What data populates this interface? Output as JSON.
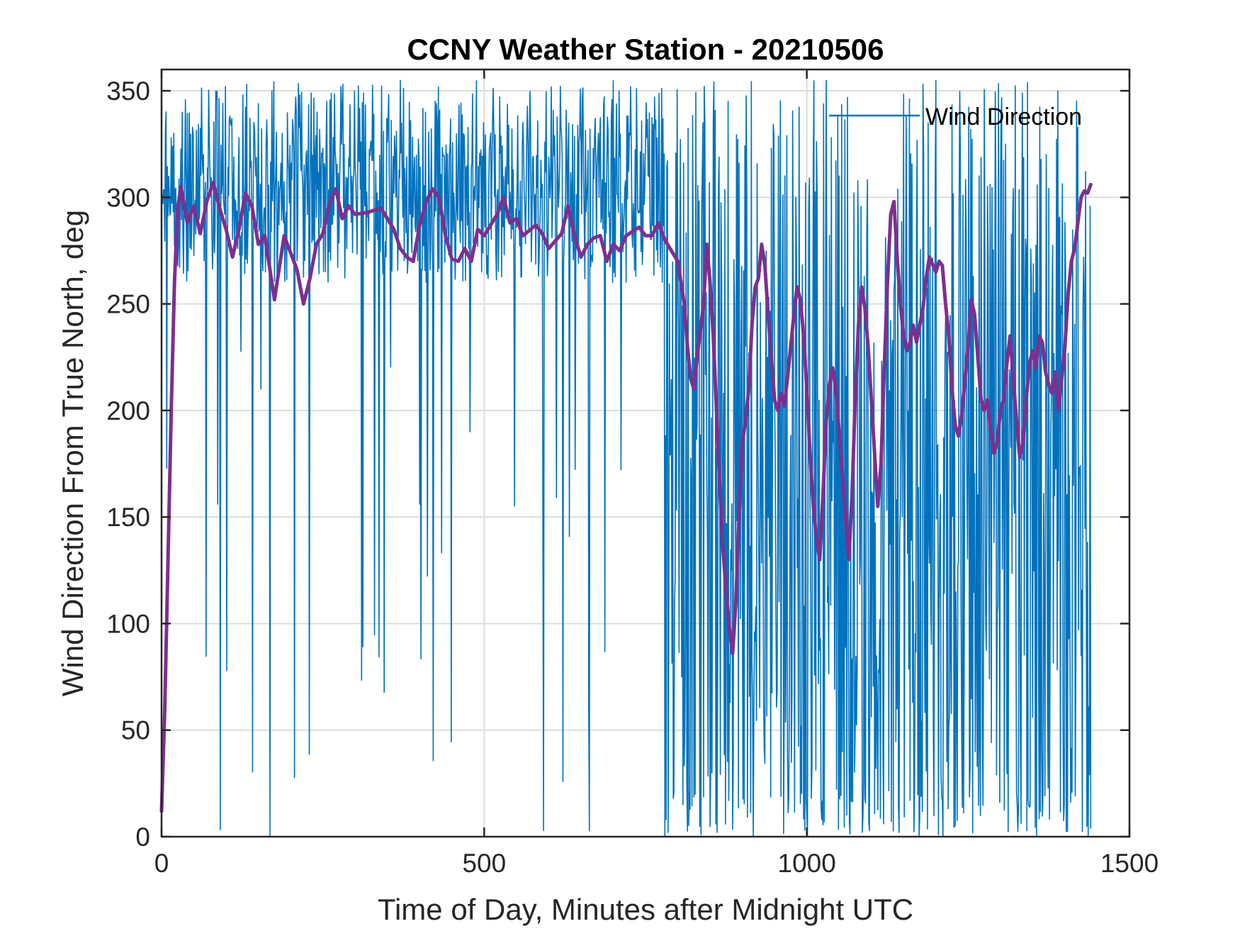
{
  "chart_data": {
    "type": "line",
    "title": "CCNY Weather Station - 20210506",
    "xlabel": "Time of Day, Minutes after Midnight UTC",
    "ylabel": "Wind Direction From True North, deg",
    "xlim": [
      0,
      1500
    ],
    "ylim": [
      0,
      360
    ],
    "xticks": [
      0,
      500,
      1000,
      1500
    ],
    "yticks": [
      0,
      50,
      100,
      150,
      200,
      250,
      300,
      350
    ],
    "grid": true,
    "legend": {
      "position": "top-right",
      "entries": [
        "Wind Direction"
      ]
    },
    "series": [
      {
        "name": "Wind Direction",
        "color": "#0072BD",
        "sampling_interval_min": 1,
        "x_range": [
          0,
          1440
        ],
        "segments": [
          {
            "x_range": [
              0,
              780
            ],
            "typical_band": [
              260,
              340
            ],
            "min": 0,
            "max": 355
          },
          {
            "x_range": [
              780,
              1440
            ],
            "typical_band": [
              20,
              355
            ],
            "min": 0,
            "max": 355
          }
        ]
      },
      {
        "color": "#7E2F8E",
        "points": [
          [
            0,
            12
          ],
          [
            5,
            60
          ],
          [
            10,
            130
          ],
          [
            15,
            200
          ],
          [
            20,
            260
          ],
          [
            25,
            295
          ],
          [
            30,
            305
          ],
          [
            40,
            288
          ],
          [
            50,
            296
          ],
          [
            60,
            283
          ],
          [
            70,
            298
          ],
          [
            80,
            307
          ],
          [
            90,
            295
          ],
          [
            100,
            285
          ],
          [
            110,
            272
          ],
          [
            120,
            285
          ],
          [
            130,
            302
          ],
          [
            140,
            296
          ],
          [
            150,
            278
          ],
          [
            160,
            282
          ],
          [
            170,
            262
          ],
          [
            175,
            252
          ],
          [
            180,
            262
          ],
          [
            190,
            282
          ],
          [
            200,
            274
          ],
          [
            210,
            266
          ],
          [
            220,
            250
          ],
          [
            230,
            262
          ],
          [
            240,
            278
          ],
          [
            250,
            283
          ],
          [
            260,
            297
          ],
          [
            270,
            304
          ],
          [
            280,
            290
          ],
          [
            290,
            296
          ],
          [
            300,
            292
          ],
          [
            320,
            293
          ],
          [
            340,
            295
          ],
          [
            360,
            285
          ],
          [
            370,
            276
          ],
          [
            380,
            272
          ],
          [
            390,
            270
          ],
          [
            400,
            287
          ],
          [
            410,
            298
          ],
          [
            420,
            304
          ],
          [
            430,
            300
          ],
          [
            440,
            282
          ],
          [
            450,
            271
          ],
          [
            460,
            270
          ],
          [
            470,
            276
          ],
          [
            480,
            270
          ],
          [
            490,
            285
          ],
          [
            500,
            282
          ],
          [
            520,
            292
          ],
          [
            530,
            300
          ],
          [
            540,
            288
          ],
          [
            550,
            290
          ],
          [
            560,
            282
          ],
          [
            580,
            287
          ],
          [
            590,
            283
          ],
          [
            600,
            276
          ],
          [
            620,
            283
          ],
          [
            630,
            296
          ],
          [
            640,
            282
          ],
          [
            650,
            272
          ],
          [
            660,
            278
          ],
          [
            670,
            281
          ],
          [
            680,
            282
          ],
          [
            690,
            270
          ],
          [
            700,
            278
          ],
          [
            710,
            275
          ],
          [
            720,
            282
          ],
          [
            740,
            286
          ],
          [
            750,
            282
          ],
          [
            760,
            282
          ],
          [
            770,
            288
          ],
          [
            780,
            280
          ],
          [
            790,
            275
          ],
          [
            800,
            270
          ],
          [
            810,
            250
          ],
          [
            815,
            230
          ],
          [
            820,
            215
          ],
          [
            825,
            210
          ],
          [
            830,
            225
          ],
          [
            840,
            250
          ],
          [
            845,
            278
          ],
          [
            850,
            260
          ],
          [
            855,
            235
          ],
          [
            860,
            200
          ],
          [
            865,
            165
          ],
          [
            870,
            135
          ],
          [
            875,
            115
          ],
          [
            880,
            98
          ],
          [
            885,
            86
          ],
          [
            890,
            110
          ],
          [
            895,
            150
          ],
          [
            900,
            185
          ],
          [
            905,
            195
          ],
          [
            910,
            210
          ],
          [
            915,
            240
          ],
          [
            920,
            258
          ],
          [
            925,
            262
          ],
          [
            930,
            278
          ],
          [
            935,
            268
          ],
          [
            940,
            245
          ],
          [
            945,
            225
          ],
          [
            950,
            205
          ],
          [
            955,
            200
          ],
          [
            960,
            208
          ],
          [
            965,
            202
          ],
          [
            970,
            215
          ],
          [
            975,
            230
          ],
          [
            980,
            245
          ],
          [
            985,
            258
          ],
          [
            990,
            252
          ],
          [
            995,
            235
          ],
          [
            1000,
            210
          ],
          [
            1005,
            180
          ],
          [
            1010,
            155
          ],
          [
            1015,
            140
          ],
          [
            1020,
            130
          ],
          [
            1025,
            160
          ],
          [
            1030,
            195
          ],
          [
            1035,
            212
          ],
          [
            1040,
            220
          ],
          [
            1045,
            210
          ],
          [
            1050,
            190
          ],
          [
            1055,
            170
          ],
          [
            1060,
            150
          ],
          [
            1065,
            130
          ],
          [
            1070,
            160
          ],
          [
            1075,
            205
          ],
          [
            1080,
            240
          ],
          [
            1085,
            258
          ],
          [
            1090,
            248
          ],
          [
            1095,
            230
          ],
          [
            1100,
            205
          ],
          [
            1105,
            180
          ],
          [
            1110,
            155
          ],
          [
            1115,
            175
          ],
          [
            1120,
            220
          ],
          [
            1125,
            260
          ],
          [
            1130,
            292
          ],
          [
            1135,
            298
          ],
          [
            1140,
            272
          ],
          [
            1145,
            250
          ],
          [
            1150,
            235
          ],
          [
            1155,
            228
          ],
          [
            1160,
            232
          ],
          [
            1165,
            240
          ],
          [
            1170,
            232
          ],
          [
            1180,
            248
          ],
          [
            1185,
            262
          ],
          [
            1190,
            272
          ],
          [
            1200,
            265
          ],
          [
            1205,
            270
          ],
          [
            1210,
            268
          ],
          [
            1215,
            250
          ],
          [
            1220,
            235
          ],
          [
            1225,
            210
          ],
          [
            1230,
            193
          ],
          [
            1235,
            188
          ],
          [
            1240,
            198
          ],
          [
            1250,
            230
          ],
          [
            1255,
            252
          ],
          [
            1260,
            245
          ],
          [
            1265,
            225
          ],
          [
            1270,
            205
          ],
          [
            1275,
            200
          ],
          [
            1280,
            205
          ],
          [
            1285,
            190
          ],
          [
            1290,
            180
          ],
          [
            1295,
            185
          ],
          [
            1300,
            200
          ],
          [
            1305,
            205
          ],
          [
            1310,
            222
          ],
          [
            1315,
            235
          ],
          [
            1320,
            215
          ],
          [
            1325,
            195
          ],
          [
            1330,
            178
          ],
          [
            1335,
            185
          ],
          [
            1340,
            205
          ],
          [
            1345,
            222
          ],
          [
            1350,
            228
          ],
          [
            1355,
            220
          ],
          [
            1360,
            235
          ],
          [
            1365,
            232
          ],
          [
            1370,
            218
          ],
          [
            1375,
            212
          ],
          [
            1380,
            208
          ],
          [
            1385,
            218
          ],
          [
            1390,
            200
          ],
          [
            1395,
            215
          ],
          [
            1400,
            230
          ],
          [
            1405,
            255
          ],
          [
            1410,
            270
          ],
          [
            1415,
            276
          ],
          [
            1420,
            288
          ],
          [
            1425,
            300
          ],
          [
            1430,
            303
          ],
          [
            1435,
            302
          ],
          [
            1440,
            306
          ]
        ]
      }
    ]
  }
}
